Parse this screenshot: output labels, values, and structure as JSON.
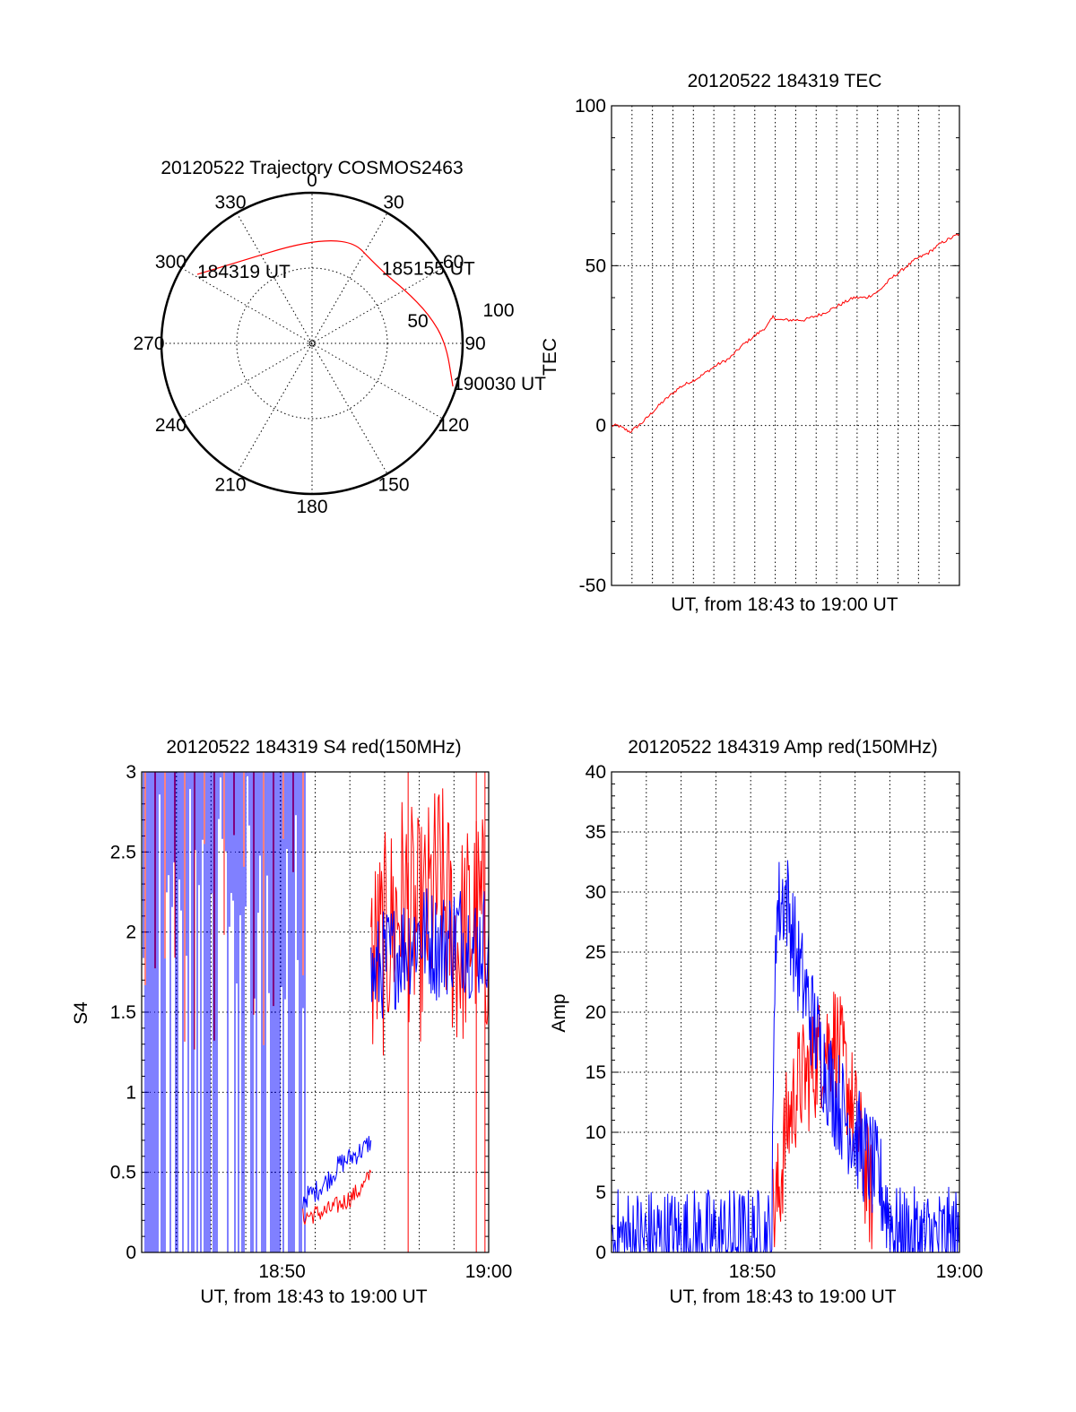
{
  "colors": {
    "red": "#ff0000",
    "blue": "#0000ff",
    "axis": "#000000",
    "background": "#ffffff"
  },
  "chart_data": [
    {
      "type": "polar",
      "title": "20120522 Trajectory COSMOS2463",
      "angle_ticks": [
        "0",
        "30",
        "60",
        "90",
        "120",
        "150",
        "180",
        "210",
        "240",
        "270",
        "300",
        "330"
      ],
      "radius_labels": [
        "50",
        "100"
      ],
      "grid": true,
      "series": [
        {
          "name": "",
          "color": "#ff0000",
          "points": [
            {
              "az": 301,
              "el": 10
            },
            {
              "az": 15,
              "el": 20
            },
            {
              "az": 44,
              "el": 30
            },
            {
              "az": 60,
              "el": 26
            },
            {
              "az": 76,
              "el": 18
            },
            {
              "az": 90,
              "el": 10
            },
            {
              "az": 107,
              "el": 2
            }
          ]
        }
      ],
      "annotations": [
        {
          "text": "184319 UT",
          "az": 301,
          "el": 10
        },
        {
          "text": "185155 UT",
          "az": 44,
          "el": 30
        },
        {
          "text": "190030 UT",
          "az": 107,
          "el": 2
        }
      ]
    },
    {
      "type": "line",
      "title": "20120522 184319 TEC",
      "xlabel": "UT, from 18:43 to 19:00 UT",
      "ylabel": "TEC",
      "xlim": [
        18.72,
        19.0
      ],
      "ylim": [
        -50,
        100
      ],
      "yticks": [
        "-50",
        "0",
        "50",
        "100"
      ],
      "xticks": [],
      "grid": true,
      "series": [
        {
          "name": "",
          "color": "#ff0000",
          "x": [
            18.72,
            18.725,
            18.73,
            18.735,
            18.745,
            18.76,
            18.775,
            18.79,
            18.805,
            18.815,
            18.825,
            18.835,
            18.845,
            18.85,
            18.855,
            18.865,
            18.875,
            18.89,
            18.905,
            18.915,
            18.925,
            18.935,
            18.945,
            18.955,
            18.965,
            18.975,
            18.985,
            18.995,
            19.0
          ],
          "y": [
            0,
            0,
            -1,
            -2,
            1,
            7,
            12,
            15,
            19,
            21,
            25,
            28,
            31,
            34,
            33,
            33,
            33,
            35,
            38,
            40,
            40,
            42,
            46,
            49,
            52,
            54,
            57,
            59,
            60
          ]
        }
      ]
    },
    {
      "type": "line",
      "title": "20120522 184319 S4 red(150MHz)",
      "xlabel": "UT, from 18:43 to 19:00 UT",
      "ylabel": "S4",
      "xlim": [
        18.72,
        19.0
      ],
      "ylim": [
        0,
        3
      ],
      "yticks": [
        "0",
        "0.5",
        "1",
        "1.5",
        "2",
        "2.5",
        "3"
      ],
      "xticks": [
        {
          "label": "18:50",
          "x": 18.8333
        },
        {
          "label": "19:00",
          "x": 19.0
        }
      ],
      "grid": true,
      "series": [
        {
          "name": "",
          "color": "#ff0000",
          "segments": [
            {
              "x": [
                18.85,
                18.86,
                18.87,
                18.88,
                18.89,
                18.9,
                18.905
              ],
              "y": [
                0.22,
                0.24,
                0.26,
                0.3,
                0.35,
                0.42,
                0.5
              ]
            },
            {
              "x": [
                18.905,
                18.915,
                18.93,
                18.945,
                18.96,
                18.975,
                18.99,
                19.0
              ],
              "y": [
                1.8,
                1.9,
                2.2,
                2.0,
                2.3,
                1.9,
                2.1,
                2.0
              ]
            }
          ]
        },
        {
          "name": "",
          "color": "#0000ff",
          "segments": [
            {
              "x": [
                18.85,
                18.86,
                18.87,
                18.88,
                18.89,
                18.9,
                18.905
              ],
              "y": [
                0.33,
                0.38,
                0.45,
                0.55,
                0.6,
                0.65,
                0.7
              ]
            },
            {
              "x": [
                18.905,
                18.915,
                18.93,
                18.945,
                18.96,
                18.975,
                18.99,
                19.0
              ],
              "y": [
                1.7,
                1.8,
                1.9,
                2.0,
                1.9,
                2.0,
                1.9,
                2.0
              ]
            }
          ]
        }
      ]
    },
    {
      "type": "line",
      "title": "20120522 184319 Amp red(150MHz)",
      "xlabel": "UT, from 18:43 to 19:00 UT",
      "ylabel": "Amp",
      "xlim": [
        18.72,
        19.0
      ],
      "ylim": [
        0,
        40
      ],
      "yticks": [
        "0",
        "5",
        "10",
        "15",
        "20",
        "25",
        "30",
        "35",
        "40"
      ],
      "xticks": [
        {
          "label": "18:50",
          "x": 18.8333
        },
        {
          "label": "19:00",
          "x": 19.0
        }
      ],
      "grid": true,
      "series": [
        {
          "name": "",
          "color": "#ff0000",
          "x": [
            18.85,
            18.855,
            18.86,
            18.87,
            18.88,
            18.89,
            18.9,
            18.91,
            18.92,
            18.93
          ],
          "y": [
            3,
            5,
            10,
            14,
            15,
            17,
            18,
            14,
            9,
            4
          ]
        },
        {
          "name": "",
          "color": "#0000ff",
          "x": [
            18.72,
            18.76,
            18.8,
            18.84,
            18.849,
            18.852,
            18.86,
            18.87,
            18.88,
            18.89,
            18.9,
            18.91,
            18.92,
            18.935,
            18.95,
            18.97,
            19.0
          ],
          "y": [
            1,
            1,
            1,
            1,
            1,
            28,
            30,
            24,
            20,
            16,
            13,
            11,
            9,
            6,
            1,
            1,
            1
          ]
        }
      ]
    }
  ]
}
